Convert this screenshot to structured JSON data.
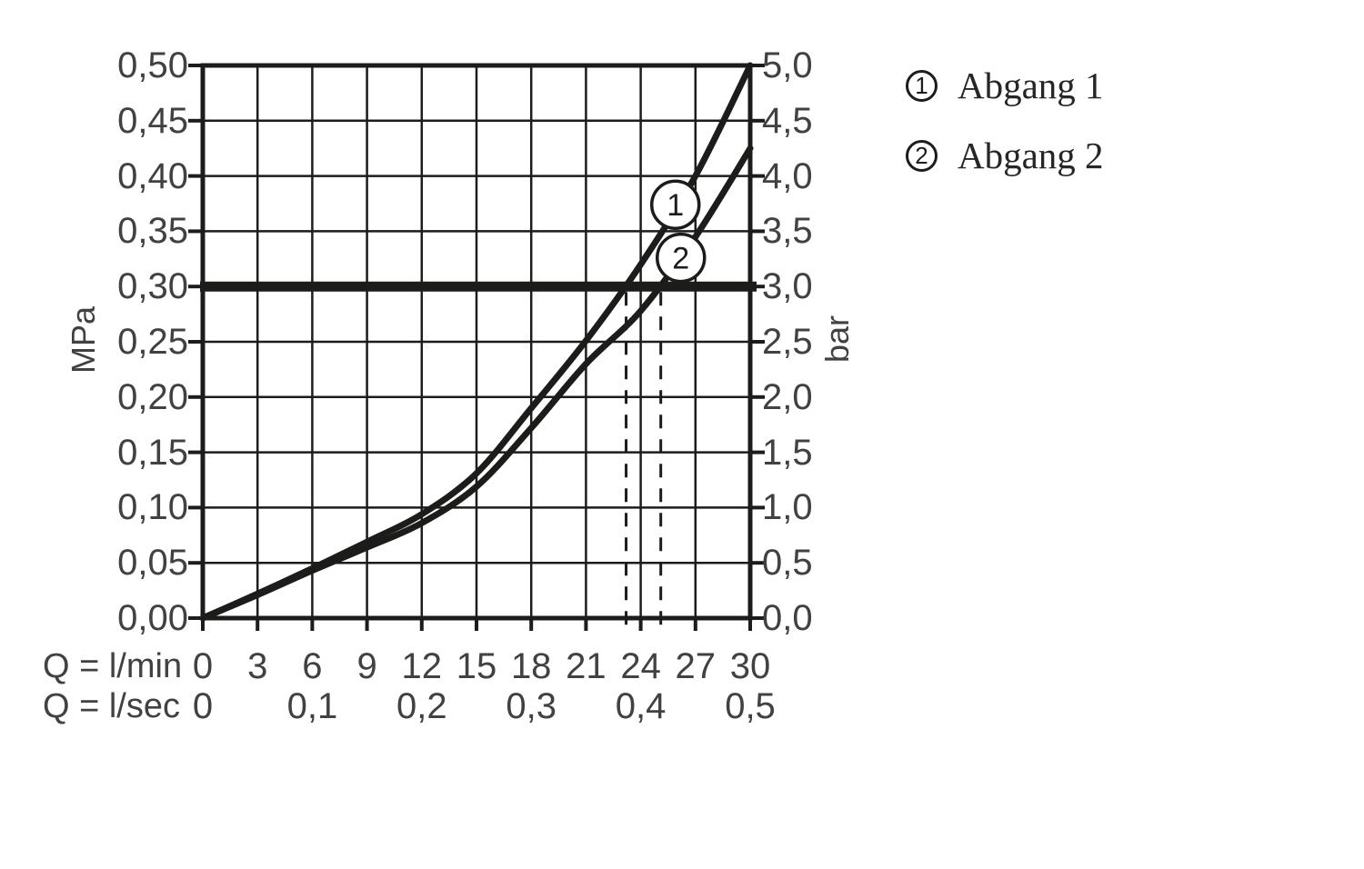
{
  "colors": {
    "background": "#ffffff",
    "ink": "#1c1c1a",
    "text": "#414141"
  },
  "chart_data": {
    "type": "line",
    "title": "",
    "grid": {
      "on": true,
      "x_step_lmin": 3,
      "y_step_mpa": 0.05
    },
    "x": {
      "unit_primary": "Q = l/min",
      "unit_secondary": "Q = l/sec",
      "range_lmin": [
        0,
        30
      ],
      "ticks_lmin": [
        "0",
        "3",
        "6",
        "9",
        "12",
        "15",
        "18",
        "21",
        "24",
        "27",
        "30"
      ],
      "ticks_lsec": [
        {
          "label": "0",
          "at_lmin": 0
        },
        {
          "label": "0,1",
          "at_lmin": 6
        },
        {
          "label": "0,2",
          "at_lmin": 12
        },
        {
          "label": "0,3",
          "at_lmin": 18
        },
        {
          "label": "0,4",
          "at_lmin": 24
        },
        {
          "label": "0,5",
          "at_lmin": 30
        }
      ]
    },
    "y_left": {
      "unit": "MPa",
      "range": [
        0,
        0.5
      ],
      "ticks_top_to_bottom": [
        "0,50",
        "0,45",
        "0,40",
        "0,35",
        "0,30",
        "0,25",
        "0,20",
        "0,15",
        "0,10",
        "0,05",
        "0,00"
      ]
    },
    "y_right": {
      "unit": "bar",
      "range": [
        0,
        5
      ],
      "ticks_top_to_bottom": [
        "5,0",
        "4,5",
        "4,0",
        "3,5",
        "3,0",
        "2,5",
        "2,0",
        "1,5",
        "1,0",
        "0,5",
        "0,0"
      ]
    },
    "series": [
      {
        "id": "1",
        "name": "Abgang 1",
        "x_lmin": [
          0,
          3,
          6,
          9,
          12,
          15,
          18,
          21,
          24,
          27,
          30
        ],
        "y_mpa": [
          0,
          0.022,
          0.045,
          0.069,
          0.094,
          0.131,
          0.19,
          0.251,
          0.32,
          0.4,
          0.5
        ],
        "marker": {
          "label": "1",
          "x_lmin": 25.9,
          "y_mpa": 0.374
        }
      },
      {
        "id": "2",
        "name": "Abgang 2",
        "x_lmin": [
          0,
          3,
          6,
          9,
          12,
          15,
          18,
          21,
          24,
          27,
          30
        ],
        "y_mpa": [
          0,
          0.021,
          0.043,
          0.064,
          0.086,
          0.119,
          0.172,
          0.23,
          0.278,
          0.345,
          0.425
        ],
        "marker": {
          "label": "2",
          "x_lmin": 26.2,
          "y_mpa": 0.326
        }
      }
    ],
    "reference_line_mpa": 0.3,
    "dashed_guides_lmin": [
      23.2,
      25.1
    ]
  },
  "legend": {
    "items": [
      {
        "symbol": "1",
        "label": "Abgang 1"
      },
      {
        "symbol": "2",
        "label": "Abgang 2"
      }
    ]
  }
}
